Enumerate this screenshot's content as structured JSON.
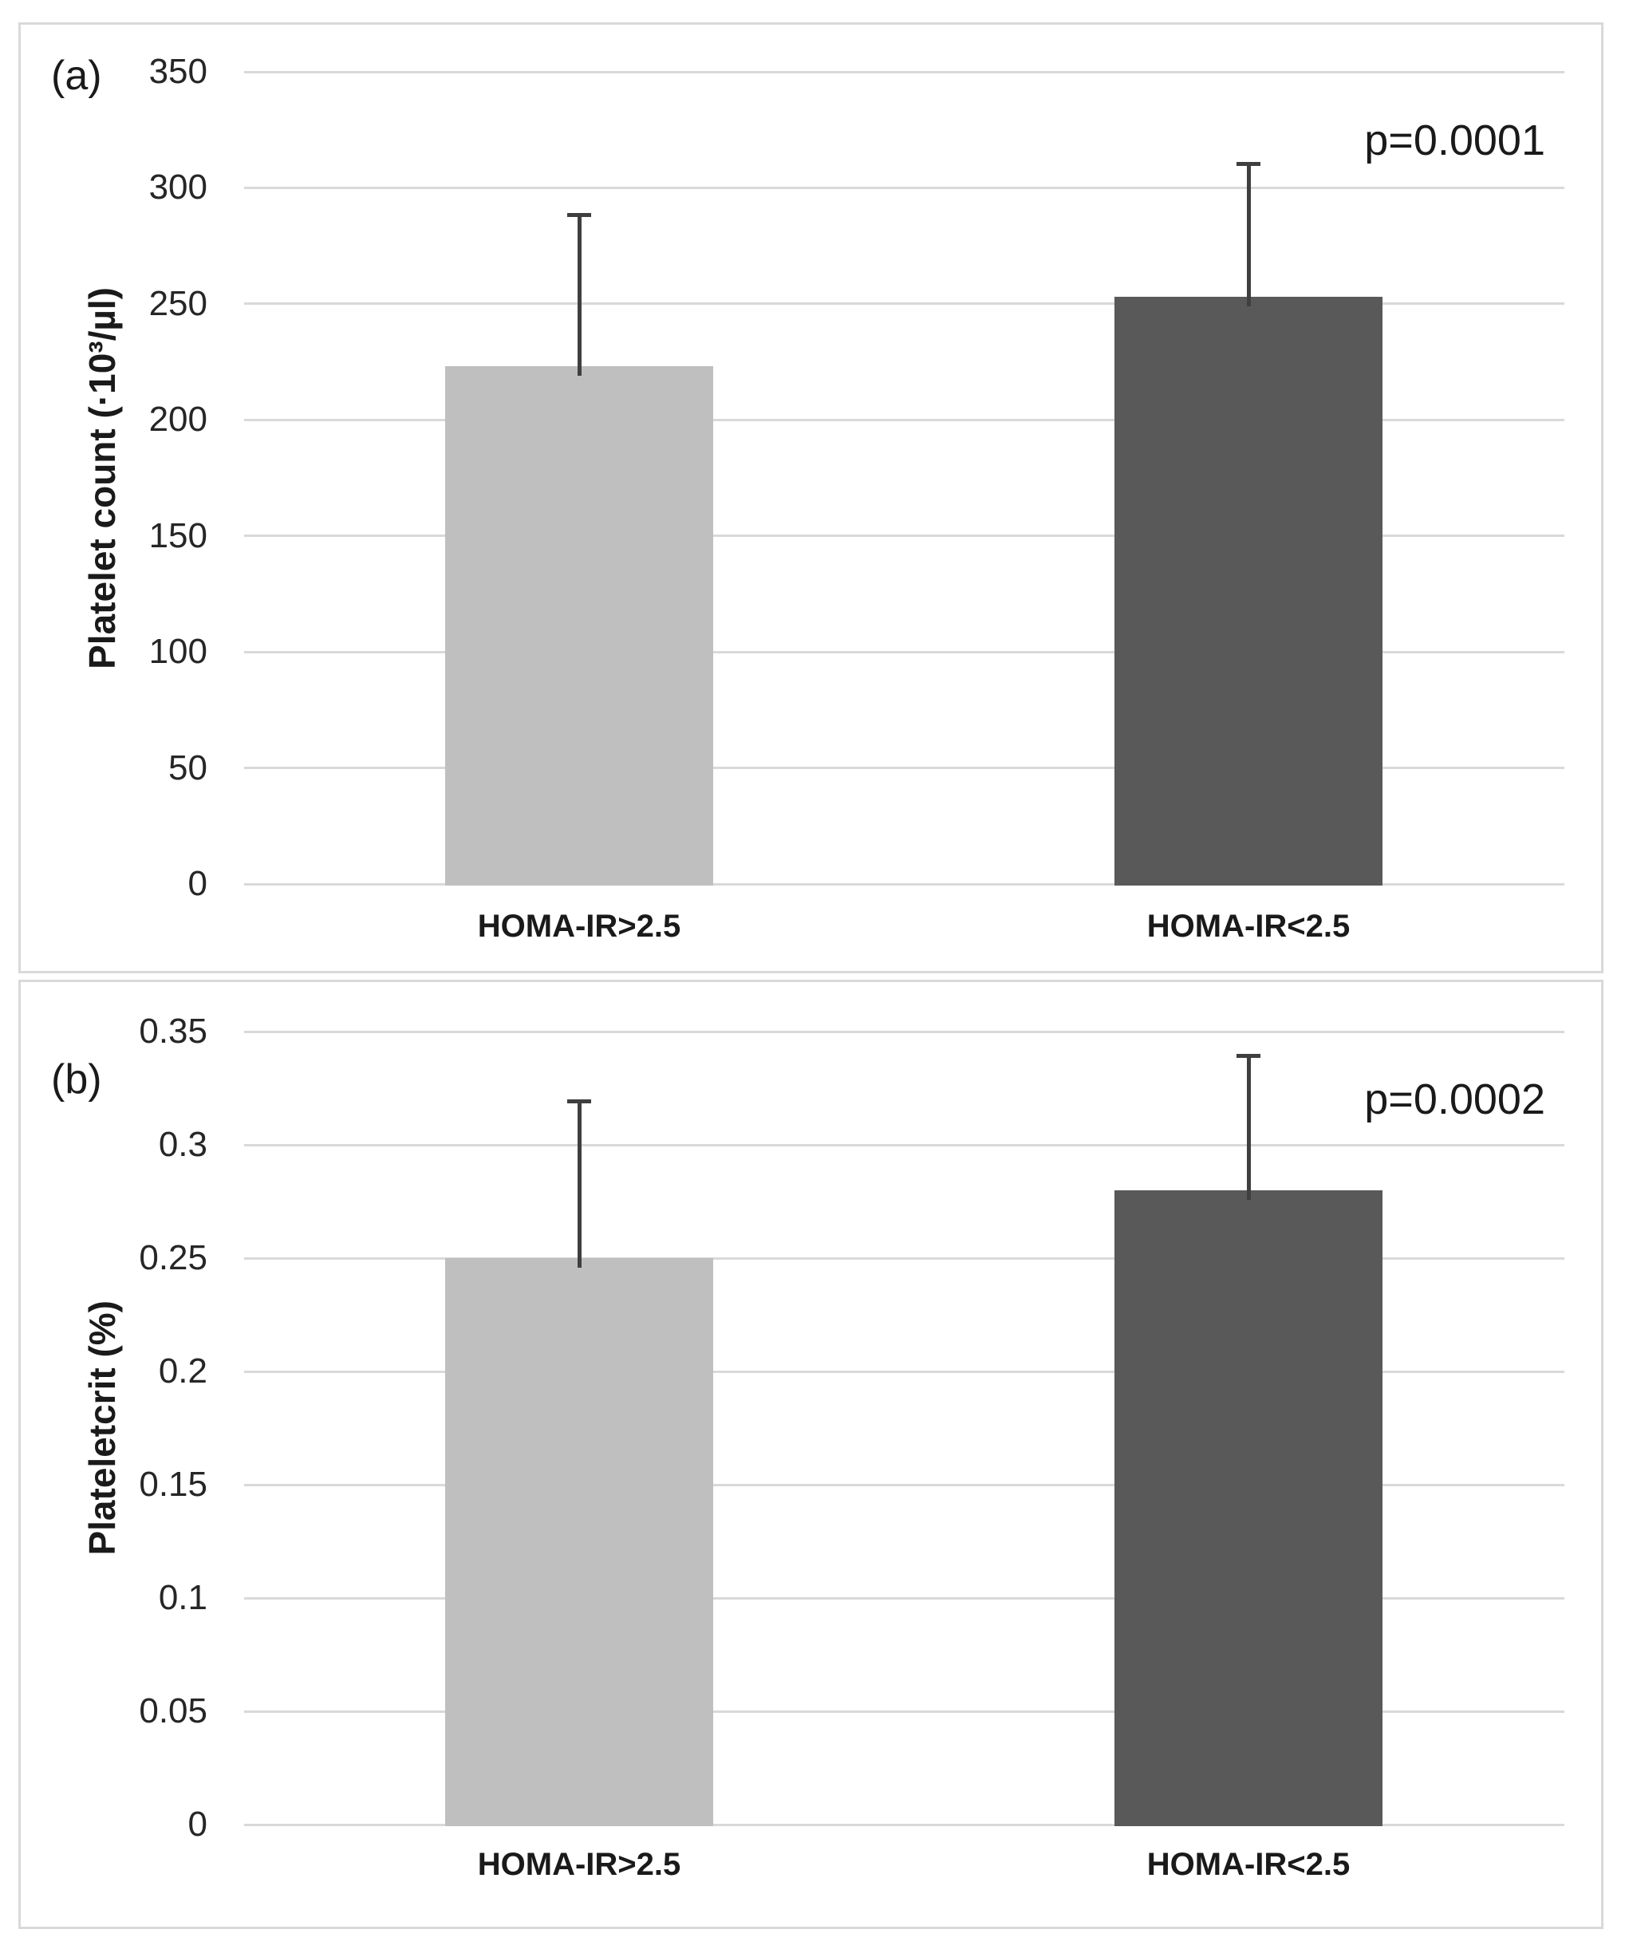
{
  "figure": {
    "background_color": "#ffffff",
    "panel_border_color": "#d9d9d9",
    "text_color": "#1a1a1a"
  },
  "chart_data": [
    {
      "type": "bar",
      "panel_label": "(a)",
      "title": "",
      "xlabel": "",
      "ylabel": "Platelet count (·10³/µl)",
      "categories": [
        "HOMA-IR>2.5",
        "HOMA-IR<2.5"
      ],
      "values": [
        223,
        253
      ],
      "error_plus": [
        66,
        58
      ],
      "ylim": [
        0,
        350
      ],
      "yticks": [
        350,
        300,
        250,
        200,
        150,
        100,
        50,
        0
      ],
      "ytick_labels": [
        "350",
        "300",
        "250",
        "200",
        "150",
        "100",
        "50",
        "0"
      ],
      "annotation": "p=0.0001",
      "legend": "none",
      "grid": "horizontal",
      "bar_colors": [
        "#bfbfbf",
        "#595959"
      ],
      "gridline_color": "#d9d9d9",
      "error_bar_color": "#3f3f3f"
    },
    {
      "type": "bar",
      "panel_label": "(b)",
      "title": "",
      "xlabel": "",
      "ylabel": "Plateletcrit (%)",
      "categories": [
        "HOMA-IR>2.5",
        "HOMA-IR<2.5"
      ],
      "values": [
        0.25,
        0.28
      ],
      "error_plus": [
        0.07,
        0.06
      ],
      "ylim": [
        0,
        0.35
      ],
      "yticks": [
        0.35,
        0.3,
        0.25,
        0.2,
        0.15,
        0.1,
        0.05,
        0
      ],
      "ytick_labels": [
        "0.35",
        "0.3",
        "0.25",
        "0.2",
        "0.15",
        "0.1",
        "0.05",
        "0"
      ],
      "annotation": "p=0.0002",
      "legend": "none",
      "grid": "horizontal",
      "bar_colors": [
        "#bfbfbf",
        "#595959"
      ],
      "gridline_color": "#d9d9d9",
      "error_bar_color": "#3f3f3f"
    }
  ]
}
